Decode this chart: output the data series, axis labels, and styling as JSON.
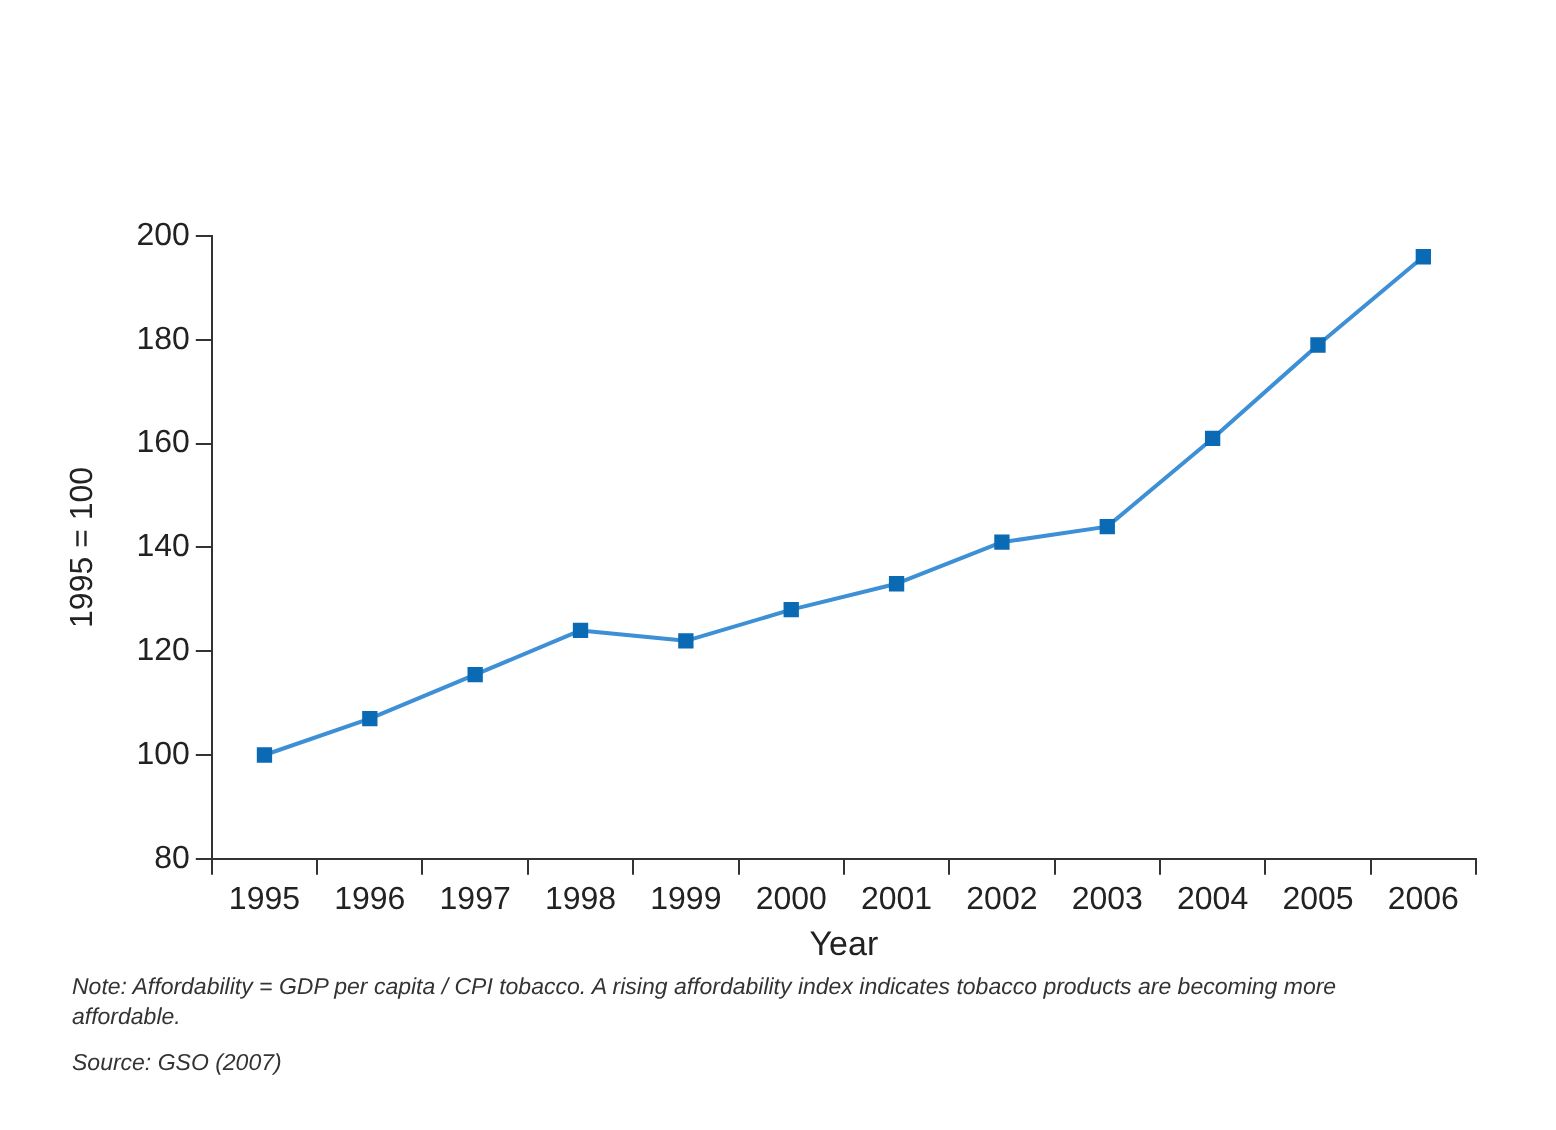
{
  "chart_data": {
    "type": "line",
    "xlabel": "Year",
    "ylabel": "1995 = 100",
    "categories": [
      "1995",
      "1996",
      "1997",
      "1998",
      "1999",
      "2000",
      "2001",
      "2002",
      "2003",
      "2004",
      "2005",
      "2006"
    ],
    "series": [
      {
        "color": "#3d8fd6",
        "values": [
          100,
          107,
          115.5,
          124,
          122,
          128,
          133,
          141,
          144,
          161,
          179,
          196
        ]
      }
    ],
    "ylim": [
      80,
      200
    ],
    "yticks": [
      80,
      100,
      120,
      140,
      160,
      180,
      200
    ],
    "grid": false,
    "legend": false,
    "marker": "square",
    "line_style": "solid",
    "annotations": [
      "Note: Affordability = GDP per capita / CPI tobacco. A rising affordability index indicates tobacco products are becoming more affordable.",
      "Source: GSO (2007)"
    ]
  }
}
